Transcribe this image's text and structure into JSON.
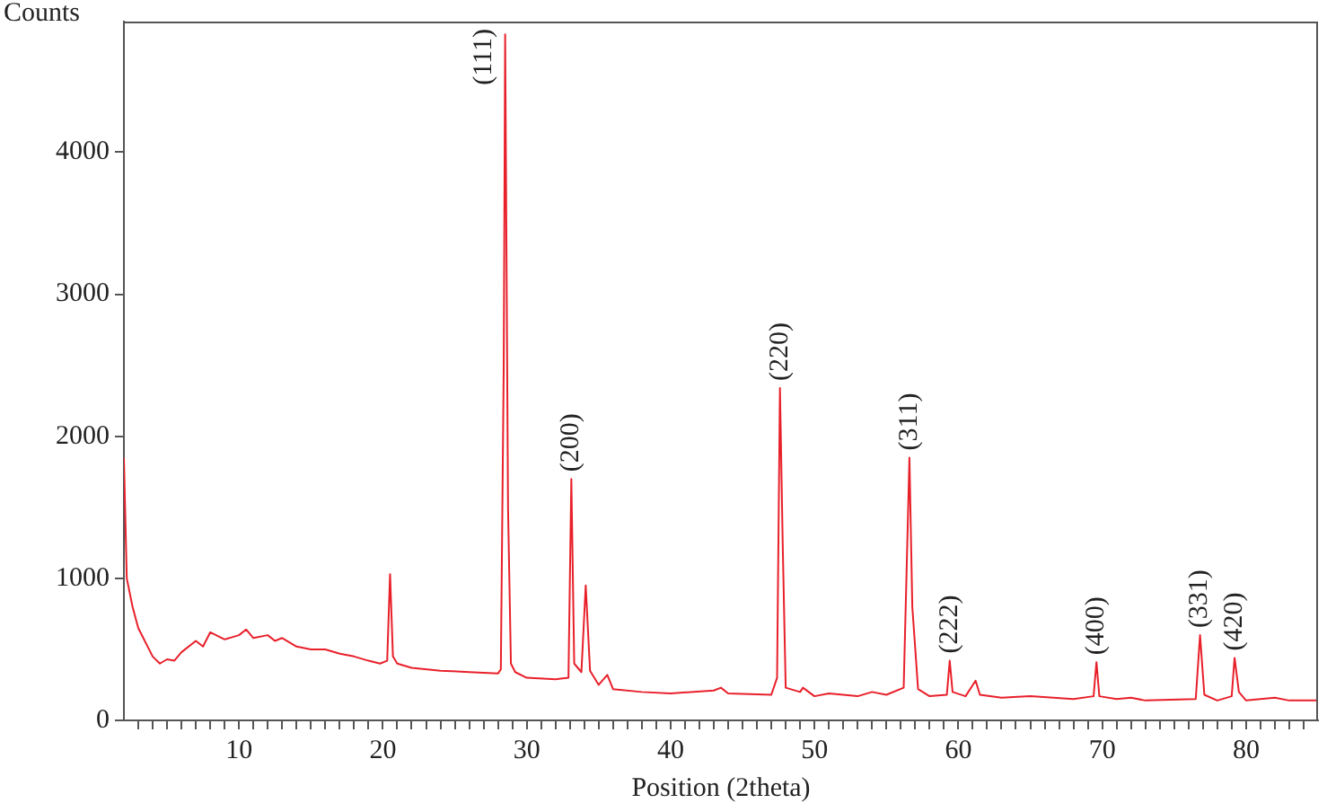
{
  "chart_data": {
    "type": "line",
    "xlabel": "Position (2theta)",
    "ylabel": "Counts",
    "xlim": [
      2,
      85
    ],
    "ylim": [
      0,
      4920
    ],
    "xticks": [
      {
        "value": 3,
        "label": null
      },
      {
        "value": 4,
        "label": null
      },
      {
        "value": 5,
        "label": null
      },
      {
        "value": 6,
        "label": null
      },
      {
        "value": 7,
        "label": null
      },
      {
        "value": 8,
        "label": null
      },
      {
        "value": 9,
        "label": null
      },
      10,
      {
        "value": 11,
        "label": null
      },
      {
        "value": 12,
        "label": null
      },
      {
        "value": 13,
        "label": null
      },
      {
        "value": 14,
        "label": null
      },
      {
        "value": 15,
        "label": null
      },
      {
        "value": 16,
        "label": null
      },
      {
        "value": 17,
        "label": null
      },
      {
        "value": 18,
        "label": null
      },
      {
        "value": 19,
        "label": null
      },
      20,
      {
        "value": 21,
        "label": null
      },
      {
        "value": 22,
        "label": null
      },
      {
        "value": 23,
        "label": null
      },
      {
        "value": 24,
        "label": null
      },
      {
        "value": 25,
        "label": null
      },
      {
        "value": 26,
        "label": null
      },
      {
        "value": 27,
        "label": null
      },
      {
        "value": 28,
        "label": null
      },
      {
        "value": 29,
        "label": null
      },
      30,
      {
        "value": 31,
        "label": null
      },
      {
        "value": 32,
        "label": null
      },
      {
        "value": 33,
        "label": null
      },
      {
        "value": 34,
        "label": null
      },
      {
        "value": 35,
        "label": null
      },
      {
        "value": 36,
        "label": null
      },
      {
        "value": 37,
        "label": null
      },
      {
        "value": 38,
        "label": null
      },
      {
        "value": 39,
        "label": null
      },
      40,
      {
        "value": 41,
        "label": null
      },
      {
        "value": 42,
        "label": null
      },
      {
        "value": 43,
        "label": null
      },
      {
        "value": 44,
        "label": null
      },
      {
        "value": 45,
        "label": null
      },
      {
        "value": 46,
        "label": null
      },
      {
        "value": 47,
        "label": null
      },
      {
        "value": 48,
        "label": null
      },
      {
        "value": 49,
        "label": null
      },
      50,
      {
        "value": 51,
        "label": null
      },
      {
        "value": 52,
        "label": null
      },
      {
        "value": 53,
        "label": null
      },
      {
        "value": 54,
        "label": null
      },
      {
        "value": 55,
        "label": null
      },
      {
        "value": 56,
        "label": null
      },
      {
        "value": 57,
        "label": null
      },
      {
        "value": 58,
        "label": null
      },
      {
        "value": 59,
        "label": null
      },
      60,
      {
        "value": 61,
        "label": null
      },
      {
        "value": 62,
        "label": null
      },
      {
        "value": 63,
        "label": null
      },
      {
        "value": 64,
        "label": null
      },
      {
        "value": 65,
        "label": null
      },
      {
        "value": 66,
        "label": null
      },
      {
        "value": 67,
        "label": null
      },
      {
        "value": 68,
        "label": null
      },
      {
        "value": 69,
        "label": null
      },
      70,
      {
        "value": 71,
        "label": null
      },
      {
        "value": 72,
        "label": null
      },
      {
        "value": 73,
        "label": null
      },
      {
        "value": 74,
        "label": null
      },
      {
        "value": 75,
        "label": null
      },
      {
        "value": 76,
        "label": null
      },
      {
        "value": 77,
        "label": null
      },
      {
        "value": 78,
        "label": null
      },
      {
        "value": 79,
        "label": null
      },
      80,
      {
        "value": 81,
        "label": null
      },
      {
        "value": 82,
        "label": null
      },
      {
        "value": 83,
        "label": null
      },
      {
        "value": 84,
        "label": null
      }
    ],
    "yticks": [
      0,
      1000,
      2000,
      3000,
      4000
    ],
    "grid": false,
    "legend": false,
    "marker": "none",
    "line_style": "solid",
    "series": [
      {
        "color": "#e8202a",
        "x": [
          2,
          2.2,
          2.6,
          3,
          4,
          4.5,
          5,
          5.5,
          6,
          7,
          7.5,
          8,
          9,
          10,
          10.5,
          11,
          12,
          12.5,
          13,
          14,
          15,
          16,
          17,
          18,
          19,
          19.8,
          20.3,
          20.5,
          20.7,
          21,
          22,
          24,
          26,
          28,
          28.2,
          28.4,
          28.5,
          28.7,
          28.9,
          29.2,
          30,
          32,
          32.9,
          33.1,
          33.3,
          33.8,
          34.1,
          34.4,
          35,
          35.6,
          36,
          38,
          40,
          43,
          43.5,
          44,
          47,
          47.4,
          47.6,
          47.8,
          48,
          49,
          49.2,
          50,
          51,
          53,
          54,
          55,
          56.2,
          56.6,
          56.8,
          57.2,
          58,
          59.2,
          59.4,
          59.6,
          60.5,
          61.2,
          61.5,
          63,
          65,
          68,
          69.4,
          69.6,
          69.8,
          71,
          72,
          73,
          76.5,
          76.8,
          77.1,
          78,
          79,
          79.2,
          79.5,
          80,
          82,
          83,
          85
        ],
        "values": [
          1850,
          1000,
          800,
          650,
          450,
          400,
          430,
          420,
          480,
          560,
          520,
          620,
          570,
          600,
          640,
          580,
          600,
          560,
          580,
          520,
          500,
          500,
          470,
          450,
          420,
          400,
          420,
          1030,
          450,
          400,
          370,
          350,
          340,
          330,
          360,
          2500,
          4830,
          1500,
          400,
          340,
          300,
          290,
          300,
          1700,
          400,
          340,
          950,
          350,
          250,
          320,
          220,
          200,
          190,
          210,
          230,
          190,
          180,
          300,
          2340,
          1200,
          230,
          200,
          230,
          170,
          190,
          170,
          200,
          180,
          230,
          1850,
          800,
          220,
          170,
          180,
          420,
          200,
          170,
          280,
          180,
          160,
          170,
          150,
          170,
          410,
          170,
          150,
          160,
          140,
          150,
          600,
          180,
          140,
          170,
          440,
          200,
          140,
          160,
          140,
          140
        ]
      }
    ],
    "annotations": [
      {
        "text": "(111)",
        "x": 28.5,
        "y": 4830
      },
      {
        "text": "(200)",
        "x": 33.1,
        "y": 1700
      },
      {
        "text": "(220)",
        "x": 47.6,
        "y": 2340
      },
      {
        "text": "(311)",
        "x": 56.6,
        "y": 1850
      },
      {
        "text": "(222)",
        "x": 59.4,
        "y": 420
      },
      {
        "text": "(400)",
        "x": 69.6,
        "y": 410
      },
      {
        "text": "(331)",
        "x": 76.8,
        "y": 600
      },
      {
        "text": "(420)",
        "x": 79.2,
        "y": 440
      }
    ]
  }
}
